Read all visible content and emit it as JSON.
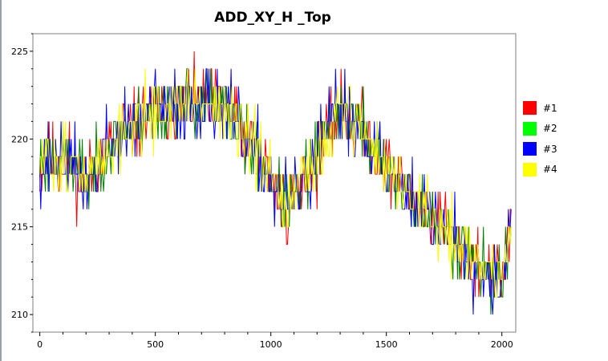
{
  "chart_data": {
    "type": "line",
    "title": "ADD_XY_H _Top",
    "xlabel": "",
    "ylabel": "",
    "xlim": [
      -30,
      2060
    ],
    "ylim": [
      209,
      226
    ],
    "xticks": [
      0,
      500,
      1000,
      1500,
      2000
    ],
    "yticks": [
      210,
      215,
      220,
      225
    ],
    "x_tick_labels": [
      "0",
      "500",
      "1000",
      "1500",
      "2000"
    ],
    "y_tick_labels": [
      "210",
      "215",
      "220",
      "225"
    ],
    "grid": false,
    "legend_position": "right",
    "x_range": [
      0,
      2040
    ],
    "trend": [
      [
        0,
        218.6
      ],
      [
        100,
        219.0
      ],
      [
        200,
        217.6
      ],
      [
        300,
        219.6
      ],
      [
        400,
        220.8
      ],
      [
        500,
        221.6
      ],
      [
        600,
        222.0
      ],
      [
        700,
        222.2
      ],
      [
        800,
        221.8
      ],
      [
        900,
        219.8
      ],
      [
        1000,
        217.8
      ],
      [
        1050,
        216.2
      ],
      [
        1100,
        216.5
      ],
      [
        1200,
        219.0
      ],
      [
        1300,
        221.8
      ],
      [
        1400,
        220.5
      ],
      [
        1500,
        218.4
      ],
      [
        1600,
        216.8
      ],
      [
        1700,
        215.4
      ],
      [
        1800,
        214.4
      ],
      [
        1900,
        212.8
      ],
      [
        2000,
        212.0
      ],
      [
        2040,
        215.2
      ]
    ],
    "series": [
      {
        "name": "#1",
        "color": "#ff0000",
        "noise": 1.7,
        "seed": 11
      },
      {
        "name": "#2",
        "color": "#00ff00",
        "line_color": "#008000",
        "noise": 1.7,
        "seed": 23
      },
      {
        "name": "#3",
        "color": "#0000ff",
        "noise": 1.8,
        "seed": 37
      },
      {
        "name": "#4",
        "color": "#ffff00",
        "noise": 1.6,
        "seed": 51
      }
    ]
  }
}
